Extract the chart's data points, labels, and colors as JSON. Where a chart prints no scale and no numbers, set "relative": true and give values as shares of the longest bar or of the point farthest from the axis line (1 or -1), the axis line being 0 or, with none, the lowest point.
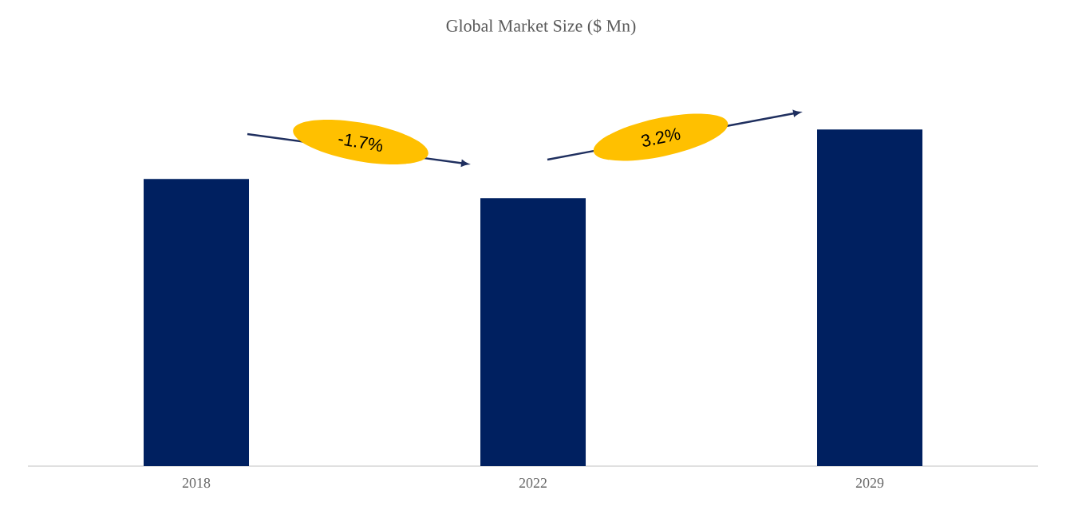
{
  "chart_data": {
    "type": "bar",
    "title": "Global Market Size ($ Mn)",
    "categories": [
      "2018",
      "2022",
      "2029"
    ],
    "values": [
      0.853,
      0.796,
      1
    ],
    "color": "#002060",
    "relative": true,
    "annotations": [
      "-1.7%",
      "3.2%"
    ]
  }
}
